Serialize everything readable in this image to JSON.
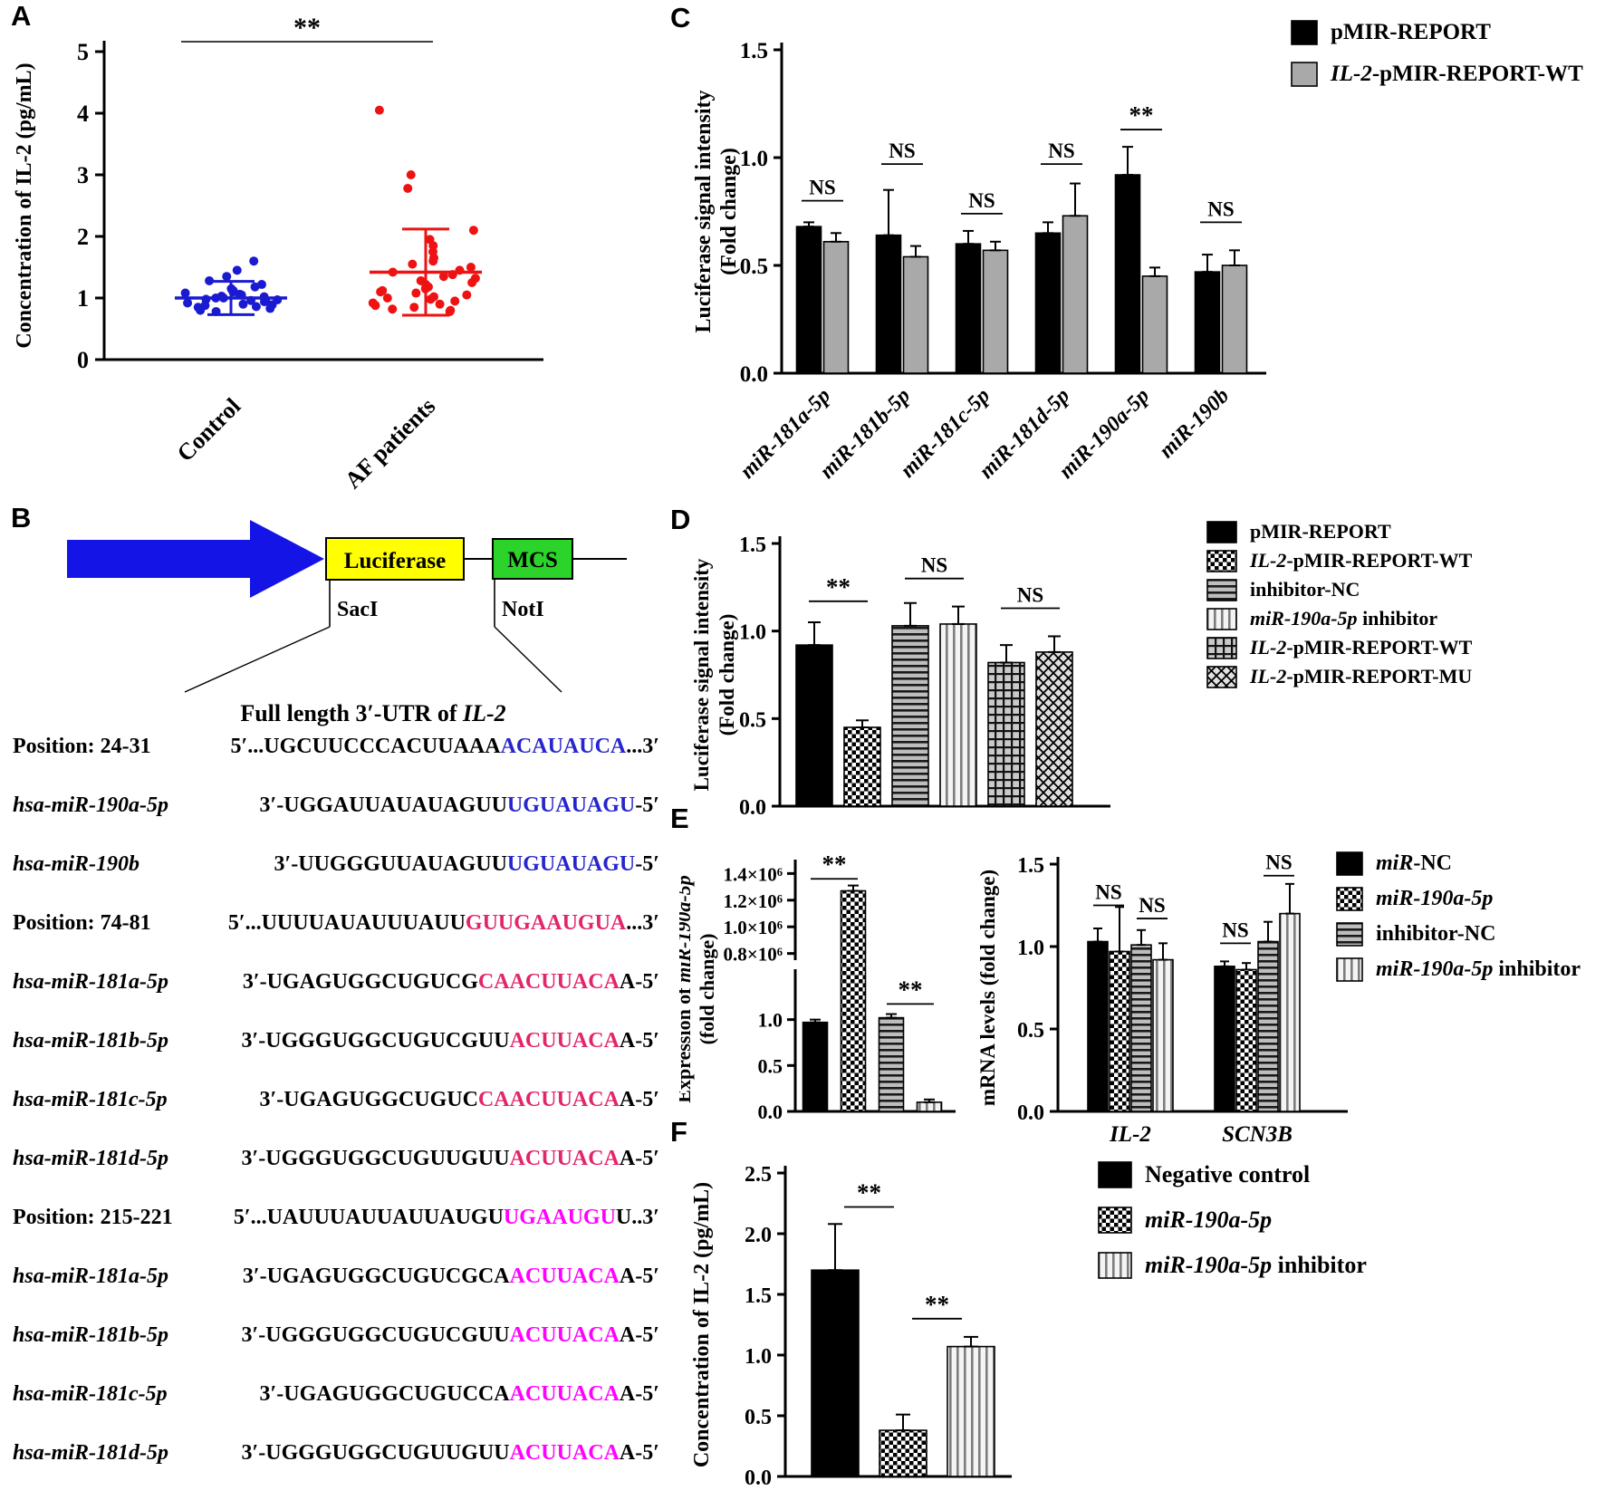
{
  "figure": {
    "panel_labels": [
      "A",
      "B",
      "C",
      "D",
      "E",
      "F"
    ]
  },
  "colors": {
    "control_blue": "#1a1ad0",
    "af_red": "#ee1212",
    "seq_blue": "#2626cc",
    "seq_crimson": "#e3256b",
    "seq_magenta": "#ff00ff",
    "arrow_blue": "#1414e6",
    "luciferase_yellow": "#ffff00",
    "mcs_green": "#2bd32b",
    "bar_gray": "#a9a9a9"
  },
  "panelB": {
    "construct": {
      "luciferase": "Luciferase",
      "mcs": "MCS",
      "sac": "SacI",
      "not": "NotI",
      "caption": [
        {
          "t": "Full length 3′-UTR of ",
          "i": false
        },
        {
          "t": "IL-2",
          "i": true
        }
      ]
    },
    "sequences": [
      {
        "label": "Position: 24-31",
        "italic": false,
        "pre": "5′...UGCUUCCCACUUAAA",
        "hl": "ACAUAUCA",
        "post": "...3′",
        "color": "seq_blue"
      },
      {
        "label": "hsa-miR-190a-5p",
        "italic": true,
        "pre": "3′-UGGAUUAUAUAGUU",
        "hl": "UGUAUAGU",
        "post": "-5′",
        "color": "seq_blue"
      },
      {
        "label": "hsa-miR-190b",
        "italic": true,
        "pre": "3′-UUGGGUUAUAGUU",
        "hl": "UGUAUAGU",
        "post": "-5′",
        "color": "seq_blue"
      },
      {
        "label": "Position: 74-81",
        "italic": false,
        "pre": "5′...UUUUAUAUUUAUU",
        "hl": "GUUGAAUGUA",
        "post": "...3′",
        "color": "seq_crimson"
      },
      {
        "label": "hsa-miR-181a-5p",
        "italic": true,
        "pre": "3′-UGAGUGGCUGUCG",
        "hl": "CAACUUACA",
        "post": "A-5′",
        "color": "seq_crimson"
      },
      {
        "label": "hsa-miR-181b-5p",
        "italic": true,
        "pre": "3′-UGGGUGGCUGUCGUU",
        "hl": "ACUUACA",
        "post": "A-5′",
        "color": "seq_crimson"
      },
      {
        "label": "hsa-miR-181c-5p",
        "italic": true,
        "pre": "3′-UGAGUGGCUGUC",
        "hl": "CAACUUACA",
        "post": "A-5′",
        "color": "seq_crimson"
      },
      {
        "label": "hsa-miR-181d-5p",
        "italic": true,
        "pre": "3′-UGGGUGGCUGUUGUU",
        "hl": "ACUUACA",
        "post": "A-5′",
        "color": "seq_crimson"
      },
      {
        "label": "Position: 215-221",
        "italic": false,
        "pre": "5′...UAUUUAUUAUUAUGU",
        "hl": "UGAAUGU",
        "post": "U..3′",
        "color": "seq_magenta"
      },
      {
        "label": "hsa-miR-181a-5p",
        "italic": true,
        "pre": "3′-UGAGUGGCUGUCGCA",
        "hl": "ACUUACA",
        "post": "A-5′",
        "color": "seq_magenta"
      },
      {
        "label": "hsa-miR-181b-5p",
        "italic": true,
        "pre": "3′-UGGGUGGCUGUCGUU",
        "hl": "ACUUACA",
        "post": "A-5′",
        "color": "seq_magenta"
      },
      {
        "label": "hsa-miR-181c-5p",
        "italic": true,
        "pre": "3′-UGAGUGGCUGUCCA",
        "hl": "ACUUACA",
        "post": "A-5′",
        "color": "seq_magenta"
      },
      {
        "label": "hsa-miR-181d-5p",
        "italic": true,
        "pre": "3′-UGGGUGGCUGUUGUU",
        "hl": "ACUUACA",
        "post": "A-5′",
        "color": "seq_magenta"
      }
    ]
  },
  "chart_data": [
    {
      "panel": "A",
      "type": "scatter",
      "ylabel": "Concentration of IL-2 (pg/mL)",
      "ylim": [
        0,
        5
      ],
      "yticks": [
        {
          "v": 0,
          "label": "0"
        },
        {
          "v": 1,
          "label": "1"
        },
        {
          "v": 2,
          "label": "2"
        },
        {
          "v": 3,
          "label": "3"
        },
        {
          "v": 4,
          "label": "4"
        },
        {
          "v": 5,
          "label": "5"
        }
      ],
      "sig": {
        "label": "**"
      },
      "groups": [
        {
          "name": "Control",
          "color": "#1a1ad0",
          "mean": 1.0,
          "sd": 0.27,
          "points": [
            1.6,
            1.45,
            1.35,
            1.28,
            1.22,
            1.18,
            1.15,
            1.12,
            1.1,
            1.08,
            1.06,
            1.05,
            1.03,
            1.02,
            1.0,
            1.0,
            0.98,
            0.97,
            0.96,
            0.95,
            0.94,
            0.92,
            0.9,
            0.89,
            0.88,
            0.86,
            0.85,
            0.83,
            0.8,
            0.78
          ]
        },
        {
          "name": "AF patients",
          "color": "#ee1212",
          "mean": 1.42,
          "sd": 0.7,
          "points": [
            4.05,
            3.0,
            2.78,
            2.1,
            1.95,
            1.85,
            1.75,
            1.65,
            1.6,
            1.55,
            1.5,
            1.45,
            1.42,
            1.38,
            1.35,
            1.32,
            1.28,
            1.25,
            1.22,
            1.18,
            1.15,
            1.12,
            1.1,
            1.08,
            1.05,
            1.02,
            1.0,
            0.98,
            0.95,
            0.92,
            0.9,
            0.88,
            0.85,
            0.82,
            0.8,
            0.78
          ]
        }
      ]
    },
    {
      "panel": "C",
      "type": "bar",
      "ylabel": [
        "Luciferase signal intensity",
        "(Fold change)"
      ],
      "ylim": [
        0,
        1.5
      ],
      "yticks": [
        {
          "v": 0,
          "label": "0.0"
        },
        {
          "v": 0.5,
          "label": "0.5"
        },
        {
          "v": 1,
          "label": "1.0"
        },
        {
          "v": 1.5,
          "label": "1.5"
        }
      ],
      "categories": [
        "miR-181a-5p",
        "miR-181b-5p",
        "miR-181c-5p",
        "miR-181d-5p",
        "miR-190a-5p",
        "miR-190b"
      ],
      "series": [
        {
          "name": "pMIR-REPORT",
          "fill": "black",
          "values": [
            0.68,
            0.64,
            0.6,
            0.65,
            0.92,
            0.47
          ],
          "errors": [
            0.02,
            0.21,
            0.06,
            0.05,
            0.13,
            0.08
          ]
        },
        {
          "name": "IL-2-pMIR-REPORT-WT",
          "fill": "gray",
          "values": [
            0.61,
            0.54,
            0.57,
            0.73,
            0.45,
            0.5
          ],
          "errors": [
            0.04,
            0.05,
            0.04,
            0.15,
            0.04,
            0.07
          ]
        }
      ],
      "sigs": [
        {
          "cat": 0,
          "label": "NS",
          "y": 0.8
        },
        {
          "cat": 1,
          "label": "NS",
          "y": 0.97
        },
        {
          "cat": 2,
          "label": "NS",
          "y": 0.74
        },
        {
          "cat": 3,
          "label": "NS",
          "y": 0.97
        },
        {
          "cat": 4,
          "label": "**",
          "y": 1.13
        },
        {
          "cat": 5,
          "label": "NS",
          "y": 0.7
        }
      ],
      "legend": [
        {
          "fill": "black",
          "segments": [
            {
              "t": "pMIR-REPORT",
              "i": false
            }
          ]
        },
        {
          "fill": "gray",
          "segments": [
            {
              "t": "IL-2",
              "i": true
            },
            {
              "t": "-pMIR-REPORT-WT",
              "i": false
            }
          ]
        }
      ]
    },
    {
      "panel": "D",
      "type": "bar",
      "ylabel": [
        "Luciferase signal intensity",
        "(Fold change)"
      ],
      "ylim": [
        0,
        1.5
      ],
      "yticks": [
        {
          "v": 0,
          "label": "0.0"
        },
        {
          "v": 0.5,
          "label": "0.5"
        },
        {
          "v": 1,
          "label": "1.0"
        },
        {
          "v": 1.5,
          "label": "1.5"
        }
      ],
      "bars": [
        {
          "fill": "black",
          "v": 0.92,
          "err": 0.13
        },
        {
          "fill": "checker",
          "v": 0.45,
          "err": 0.04
        },
        {
          "fill": "hlines",
          "v": 1.03,
          "err": 0.13
        },
        {
          "fill": "vlines",
          "v": 1.04,
          "err": 0.1
        },
        {
          "fill": "grid",
          "v": 0.82,
          "err": 0.1
        },
        {
          "fill": "diamond",
          "v": 0.88,
          "err": 0.09
        }
      ],
      "sigs": [
        {
          "span": [
            0,
            1
          ],
          "label": "**",
          "y": 1.17
        },
        {
          "span": [
            2,
            3
          ],
          "label": "NS",
          "y": 1.3
        },
        {
          "span": [
            4,
            5
          ],
          "label": "NS",
          "y": 1.13
        }
      ],
      "legend": [
        {
          "fill": "black",
          "segments": [
            {
              "t": "pMIR-REPORT",
              "i": false
            }
          ]
        },
        {
          "fill": "checker",
          "segments": [
            {
              "t": "IL-2",
              "i": true
            },
            {
              "t": "-pMIR-REPORT-WT",
              "i": false
            }
          ]
        },
        {
          "fill": "hlines",
          "segments": [
            {
              "t": "inhibitor-NC",
              "i": false
            }
          ]
        },
        {
          "fill": "vlines",
          "segments": [
            {
              "t": "miR-190a-5p",
              "i": true
            },
            {
              "t": " inhibitor",
              "i": false
            }
          ]
        },
        {
          "fill": "grid",
          "segments": [
            {
              "t": "IL-2",
              "i": true
            },
            {
              "t": "-pMIR-REPORT-WT",
              "i": false
            }
          ]
        },
        {
          "fill": "diamond",
          "segments": [
            {
              "t": "IL-2",
              "i": true
            },
            {
              "t": "-pMIR-REPORT-MU",
              "i": false
            }
          ]
        }
      ]
    },
    {
      "panel": "E1",
      "type": "bar-broken-axis",
      "ylabel_lines": [
        [
          {
            "t": "Expression of ",
            "i": false
          },
          {
            "t": "miR-190a-5p",
            "i": true
          }
        ],
        [
          {
            "t": "(fold change)",
            "i": false
          }
        ]
      ],
      "upper": {
        "range": [
          750000,
          1450000
        ],
        "ticks": [
          {
            "v": 800000,
            "label": "0.8×10⁶"
          },
          {
            "v": 1000000,
            "label": "1.0×10⁶"
          },
          {
            "v": 1200000,
            "label": "1.2×10⁶"
          },
          {
            "v": 1400000,
            "label": "1.4×10⁶"
          }
        ]
      },
      "lower": {
        "range": [
          0,
          1.45
        ],
        "ticks": [
          {
            "v": 0,
            "label": "0.0"
          },
          {
            "v": 0.5,
            "label": "0.5"
          },
          {
            "v": 1,
            "label": "1.0"
          }
        ]
      },
      "bars": [
        {
          "fill": "black",
          "v": 0.97,
          "err": 0.03,
          "upper": false
        },
        {
          "fill": "checker",
          "v": 1270000,
          "err": 40000,
          "upper": true
        },
        {
          "fill": "hlines",
          "v": 1.02,
          "err": 0.04,
          "upper": false
        },
        {
          "fill": "vlines",
          "v": 0.1,
          "err": 0.03,
          "upper": false
        }
      ],
      "sigs": [
        {
          "span": [
            0,
            1
          ],
          "label": "**",
          "where": "upper",
          "y": 1360000
        },
        {
          "span": [
            2,
            3
          ],
          "label": "**",
          "where": "lower",
          "y": 1.17
        }
      ]
    },
    {
      "panel": "E2",
      "type": "bar",
      "ylabel": [
        "mRNA levels (fold change)"
      ],
      "ylim": [
        0,
        1.5
      ],
      "yticks": [
        {
          "v": 0,
          "label": "0.0"
        },
        {
          "v": 0.5,
          "label": "0.5"
        },
        {
          "v": 1,
          "label": "1.0"
        },
        {
          "v": 1.5,
          "label": "1.5"
        }
      ],
      "categories": [
        "IL-2",
        "SCN3B"
      ],
      "series": [
        {
          "name": "miR-NC",
          "fill": "black",
          "values": [
            1.03,
            0.88
          ],
          "errors": [
            0.08,
            0.03
          ]
        },
        {
          "name": "miR-190a-5p",
          "fill": "checker",
          "values": [
            0.97,
            0.86
          ],
          "errors": [
            0.27,
            0.04
          ]
        },
        {
          "name": "inhibitor-NC",
          "fill": "hlines",
          "values": [
            1.01,
            1.03
          ],
          "errors": [
            0.09,
            0.12
          ]
        },
        {
          "name": "miR-190a-5p inhibitor",
          "fill": "vlines",
          "values": [
            0.92,
            1.2
          ],
          "errors": [
            0.1,
            0.18
          ]
        }
      ],
      "sigs": [
        {
          "cat": 0,
          "span": [
            0,
            1
          ],
          "label": "NS",
          "y": 1.25
        },
        {
          "cat": 0,
          "span": [
            2,
            3
          ],
          "label": "NS",
          "y": 1.17
        },
        {
          "cat": 1,
          "span": [
            0,
            1
          ],
          "label": "NS",
          "y": 1.02
        },
        {
          "cat": 1,
          "span": [
            2,
            3
          ],
          "label": "NS",
          "y": 1.43
        }
      ],
      "legend": [
        {
          "fill": "black",
          "segments": [
            {
              "t": "miR",
              "i": true
            },
            {
              "t": "-NC",
              "i": false
            }
          ]
        },
        {
          "fill": "checker",
          "segments": [
            {
              "t": "miR-190a-5p",
              "i": true
            }
          ]
        },
        {
          "fill": "hlines",
          "segments": [
            {
              "t": "inhibitor-NC",
              "i": false
            }
          ]
        },
        {
          "fill": "vlines",
          "segments": [
            {
              "t": "miR-190a-5p",
              "i": true
            },
            {
              "t": " inhibitor",
              "i": false
            }
          ]
        }
      ]
    },
    {
      "panel": "F",
      "type": "bar",
      "ylabel": [
        "Concentration of IL-2 (pg/mL)"
      ],
      "ylim": [
        0,
        2.5
      ],
      "yticks": [
        {
          "v": 0,
          "label": "0.0"
        },
        {
          "v": 0.5,
          "label": "0.5"
        },
        {
          "v": 1,
          "label": "1.0"
        },
        {
          "v": 1.5,
          "label": "1.5"
        },
        {
          "v": 2,
          "label": "2.0"
        },
        {
          "v": 2.5,
          "label": "2.5"
        }
      ],
      "bars": [
        {
          "fill": "black",
          "v": 1.7,
          "err": 0.38
        },
        {
          "fill": "checker",
          "v": 0.38,
          "err": 0.13
        },
        {
          "fill": "vlines",
          "v": 1.07,
          "err": 0.08
        }
      ],
      "sigs": [
        {
          "span": [
            0,
            1
          ],
          "label": "**",
          "y": 2.22
        },
        {
          "span": [
            1,
            2
          ],
          "label": "**",
          "y": 1.3
        }
      ],
      "legend": [
        {
          "fill": "black",
          "segments": [
            {
              "t": "Negative control",
              "i": false
            }
          ]
        },
        {
          "fill": "checker",
          "segments": [
            {
              "t": "miR-190a-5p",
              "i": true
            }
          ]
        },
        {
          "fill": "vlines",
          "segments": [
            {
              "t": "miR-190a-5p",
              "i": true
            },
            {
              "t": " inhibitor",
              "i": false
            }
          ]
        }
      ]
    }
  ]
}
